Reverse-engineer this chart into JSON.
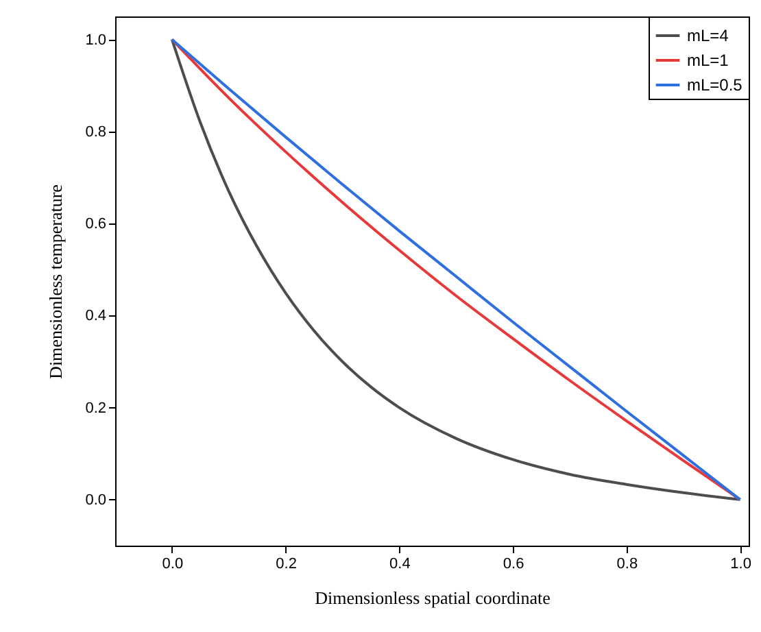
{
  "chart_data": {
    "type": "line",
    "xlabel": "Dimensionless spatial coordinate",
    "ylabel": "Dimensionless temperature",
    "x": [
      0,
      0.05,
      0.1,
      0.15,
      0.2,
      0.25,
      0.3,
      0.35,
      0.4,
      0.5,
      0.6,
      0.7,
      0.8,
      0.9,
      1
    ],
    "series": [
      {
        "name": "mL=4",
        "color": "#4d4d4d",
        "values": [
          1,
          0.819,
          0.67,
          0.549,
          0.449,
          0.367,
          0.3,
          0.245,
          0.2,
          0.133,
          0.087,
          0.055,
          0.033,
          0.015,
          0
        ]
      },
      {
        "name": "mL=1",
        "color": "#e8393a",
        "x": [
          0,
          0.1,
          0.2,
          0.3,
          0.4,
          0.5,
          0.6,
          0.7,
          0.8,
          0.9,
          1
        ],
        "values": [
          1,
          0.873,
          0.756,
          0.646,
          0.542,
          0.443,
          0.35,
          0.259,
          0.171,
          0.085,
          0
        ]
      },
      {
        "name": "mL=0.5",
        "color": "#2f6fdf",
        "x": [
          0,
          0.1,
          0.2,
          0.3,
          0.4,
          0.5,
          0.6,
          0.7,
          0.8,
          0.9,
          1
        ],
        "values": [
          1,
          0.893,
          0.788,
          0.685,
          0.584,
          0.485,
          0.386,
          0.289,
          0.192,
          0.096,
          0
        ]
      }
    ],
    "xlim": [
      -0.1,
      1.015
    ],
    "ylim": [
      -0.1,
      1.05
    ],
    "xticks": [
      {
        "value": 0,
        "label": "0.0"
      },
      {
        "value": 0.2,
        "label": "0.2"
      },
      {
        "value": 0.4,
        "label": "0.4"
      },
      {
        "value": 0.6,
        "label": "0.6"
      },
      {
        "value": 0.8,
        "label": "0.8"
      },
      {
        "value": 1,
        "label": "1.0"
      }
    ],
    "yticks": [
      {
        "value": 0,
        "label": "0.0"
      },
      {
        "value": 0.2,
        "label": "0.2"
      },
      {
        "value": 0.4,
        "label": "0.4"
      },
      {
        "value": 0.6,
        "label": "0.6"
      },
      {
        "value": 0.8,
        "label": "0.8"
      },
      {
        "value": 1,
        "label": "1.0"
      }
    ],
    "grid": false,
    "legend": "top right",
    "marker": "none",
    "line_style": "solid"
  }
}
